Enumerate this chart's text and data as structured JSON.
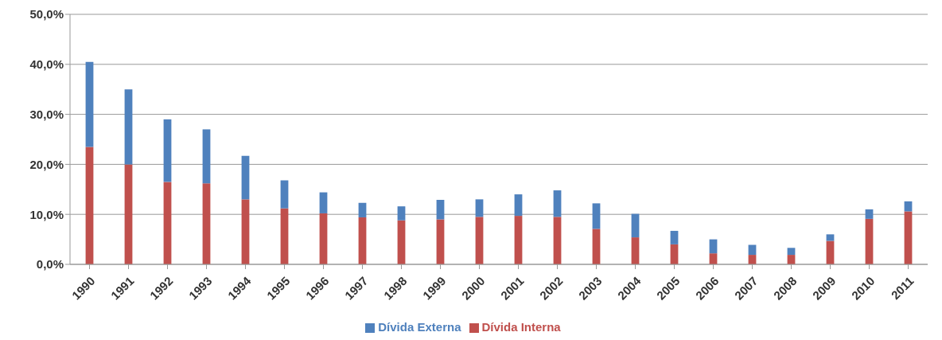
{
  "chart_data": {
    "type": "bar",
    "stacked": true,
    "categories": [
      "1990",
      "1991",
      "1992",
      "1993",
      "1994",
      "1995",
      "1996",
      "1997",
      "1998",
      "1999",
      "2000",
      "2001",
      "2002",
      "2003",
      "2004",
      "2005",
      "2006",
      "2007",
      "2008",
      "2009",
      "2010",
      "2011"
    ],
    "series": [
      {
        "name": "Dívida Interna",
        "color": "#c0504d",
        "values": [
          23.5,
          20,
          16.5,
          16.2,
          13,
          11.2,
          10.2,
          9.4,
          8.8,
          9,
          9.5,
          9.7,
          9.5,
          7.1,
          5.4,
          4,
          2.2,
          1.9,
          1.9,
          4.7,
          9.1,
          10.6
        ]
      },
      {
        "name": "Dívida Externa",
        "color": "#4f81bd",
        "values": [
          17,
          15,
          12.5,
          10.8,
          8.7,
          5.6,
          4.2,
          2.9,
          2.8,
          3.9,
          3.5,
          4.3,
          5.3,
          5.1,
          4.7,
          2.7,
          2.8,
          2,
          1.4,
          1.3,
          1.9,
          2
        ]
      }
    ],
    "ylim": [
      0,
      50
    ],
    "yticks": [
      {
        "value": 0,
        "label": "0,0%"
      },
      {
        "value": 10,
        "label": "10,0%"
      },
      {
        "value": 20,
        "label": "20,0%"
      },
      {
        "value": 30,
        "label": "30,0%"
      },
      {
        "value": 40,
        "label": "40,0%"
      },
      {
        "value": 50,
        "label": "50,0%"
      }
    ],
    "grid": "y",
    "legend": "bottom"
  }
}
